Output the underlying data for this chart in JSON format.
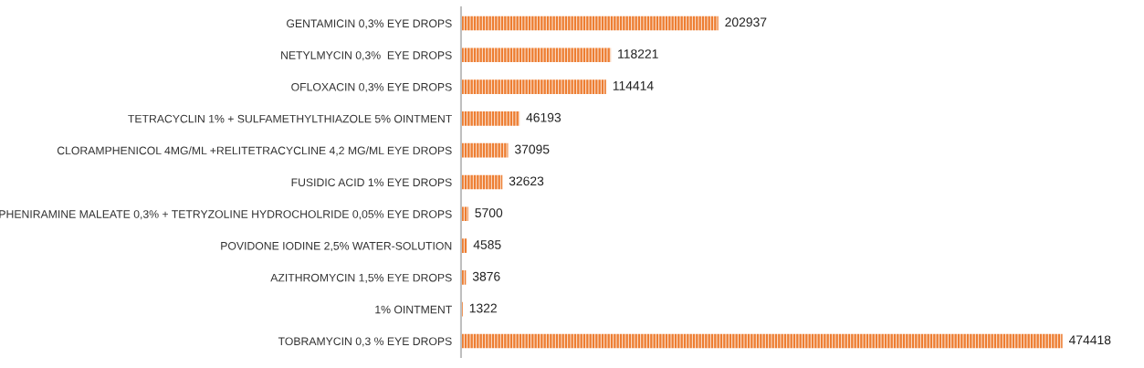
{
  "chart_data": {
    "type": "bar",
    "orientation": "horizontal",
    "data_labels": true,
    "grid": false,
    "legend": false,
    "tick_labels": "y",
    "color": "#ed7d31",
    "categories": [
      "GENTAMICIN 0,3% EYE DROPS",
      "NETYLMYCIN 0,3%  EYE DROPS",
      "OFLOXACIN 0,3% EYE DROPS",
      "TETRACYCLIN 1% + SULFAMETHYLTHIAZOLE 5% OINTMENT",
      "CLORAMPHENICOL 4MG/ML +RELITETRACYCLINE 4,2 MG/ML EYE DROPS",
      "FUSIDIC ACID 1% EYE DROPS",
      "PHENIRAMINE MALEATE 0,3% + TETRYZOLINE HYDROCHOLRIDE 0,05% EYE DROPS",
      "POVIDONE IODINE 2,5% WATER-SOLUTION",
      "AZITHROMYCIN 1,5% EYE DROPS",
      "1% OINTMENT",
      "TOBRAMYCIN 0,3 % EYE DROPS"
    ],
    "values": [
      202937,
      118221,
      114414,
      46193,
      37095,
      32623,
      5700,
      4585,
      3876,
      1322,
      474418
    ]
  }
}
